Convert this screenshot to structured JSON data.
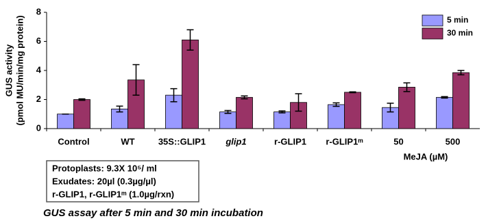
{
  "chart_data": {
    "type": "bar",
    "y_label": [
      "GUS activity",
      "(pmol MU/min/mg protein)"
    ],
    "categories": [
      "Control",
      "WT",
      "35S::GLIP1",
      "glip1",
      "r-GLIP1",
      "r-GLIP1ᵐ",
      "50",
      "500"
    ],
    "group_label": "MeJA (µM)",
    "series": [
      {
        "name": "5 min",
        "color": "#9999ff",
        "values": [
          1.0,
          1.35,
          2.3,
          1.15,
          1.15,
          1.65,
          1.45,
          2.15
        ],
        "errors": [
          0,
          0.2,
          0.45,
          0.1,
          0.07,
          0.12,
          0.3,
          0.05
        ]
      },
      {
        "name": "30 min",
        "color": "#993366",
        "values": [
          2.0,
          3.35,
          6.1,
          2.15,
          1.8,
          2.5,
          2.85,
          3.85
        ],
        "errors": [
          0.05,
          1.05,
          0.7,
          0.1,
          0.6,
          0.03,
          0.3,
          0.15
        ]
      }
    ],
    "ylim": [
      0,
      8
    ],
    "yticks": [
      0,
      2,
      4,
      6,
      8
    ],
    "legend": "upper right"
  },
  "notes": [
    "Protoplasts: 9.3X 10⁵/ ml",
    "Exudates: 20µl (0.3µg/µl)",
    "r-GLIP1, r-GLIP1ᵐ (1.0µg/rxn)"
  ],
  "caption": "GUS assay after 5 min and 30 min incubation"
}
